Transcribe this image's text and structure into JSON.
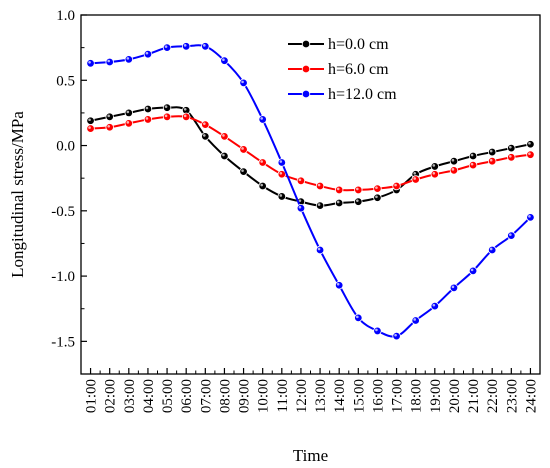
{
  "chart_data": {
    "type": "line",
    "xlabel": "Time",
    "ylabel": "Longitudinal stress/MPa",
    "ylim": [
      -1.75,
      1.0
    ],
    "yticks": [
      "1.0",
      "0.5",
      "0.0",
      "-0.5",
      "-1.0",
      "-1.5"
    ],
    "ytick_values": [
      1.0,
      0.5,
      0.0,
      -0.5,
      -1.0,
      -1.5
    ],
    "x": [
      "01:00",
      "02:00",
      "03:00",
      "04:00",
      "05:00",
      "06:00",
      "07:00",
      "08:00",
      "09:00",
      "10:00",
      "11:00",
      "12:00",
      "13:00",
      "14:00",
      "15:00",
      "16:00",
      "17:00",
      "18:00",
      "19:00",
      "20:00",
      "21:00",
      "22:00",
      "23:00",
      "24:00"
    ],
    "legend_position": "top-right",
    "series": [
      {
        "name": "h=0.0 cm",
        "color": "#000000",
        "values": [
          0.19,
          0.22,
          0.25,
          0.28,
          0.29,
          0.27,
          0.07,
          -0.08,
          -0.2,
          -0.31,
          -0.39,
          -0.43,
          -0.46,
          -0.44,
          -0.43,
          -0.4,
          -0.34,
          -0.22,
          -0.16,
          -0.12,
          -0.08,
          -0.05,
          -0.02,
          0.01
        ]
      },
      {
        "name": "h=6.0 cm",
        "color": "#ff0000",
        "values": [
          0.13,
          0.14,
          0.17,
          0.2,
          0.22,
          0.22,
          0.16,
          0.07,
          -0.03,
          -0.13,
          -0.22,
          -0.27,
          -0.31,
          -0.34,
          -0.34,
          -0.33,
          -0.31,
          -0.26,
          -0.22,
          -0.19,
          -0.15,
          -0.12,
          -0.09,
          -0.07
        ]
      },
      {
        "name": "h=12.0 cm",
        "color": "#0000ff",
        "values": [
          0.63,
          0.64,
          0.66,
          0.7,
          0.75,
          0.76,
          0.76,
          0.65,
          0.48,
          0.2,
          -0.13,
          -0.48,
          -0.8,
          -1.07,
          -1.32,
          -1.42,
          -1.46,
          -1.34,
          -1.23,
          -1.09,
          -0.96,
          -0.8,
          -0.69,
          -0.55
        ]
      }
    ]
  }
}
